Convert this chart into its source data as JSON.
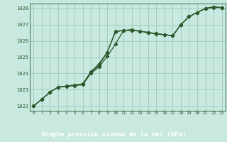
{
  "title": "Graphe pression niveau de la mer (hPa)",
  "bg_color": "#c8e8e0",
  "label_bg_color": "#2d6e3a",
  "grid_color": "#a0c8b8",
  "line_color": "#2d5a2d",
  "text_color": "#2d5a2d",
  "label_text_color": "#ffffff",
  "xlim": [
    -0.5,
    23.5
  ],
  "ylim": [
    1021.7,
    1028.3
  ],
  "yticks": [
    1022,
    1023,
    1024,
    1025,
    1026,
    1027,
    1028
  ],
  "xticks": [
    0,
    1,
    2,
    3,
    4,
    5,
    6,
    7,
    8,
    9,
    10,
    11,
    12,
    13,
    14,
    15,
    16,
    17,
    18,
    19,
    20,
    21,
    22,
    23
  ],
  "series1_x": [
    0,
    1,
    2,
    3,
    4,
    5,
    6,
    7,
    8,
    9,
    10,
    11,
    12,
    13,
    14,
    15,
    16,
    17,
    18,
    19,
    20,
    21,
    22,
    23
  ],
  "series1_y": [
    1022.0,
    1022.4,
    1022.85,
    1023.15,
    1023.2,
    1023.25,
    1023.3,
    1024.0,
    1024.4,
    1025.05,
    1025.8,
    1026.65,
    1026.7,
    1026.6,
    1026.5,
    1026.42,
    1026.38,
    1026.32,
    1027.0,
    1027.5,
    1027.75,
    1028.0,
    1028.05,
    1028.05
  ],
  "series2_x": [
    0,
    1,
    2,
    3,
    4,
    5,
    6,
    7,
    8,
    9,
    10,
    11,
    12,
    13,
    14,
    15,
    16,
    17,
    18,
    19,
    20,
    21,
    22,
    23
  ],
  "series2_y": [
    1022.0,
    1022.4,
    1022.85,
    1023.15,
    1023.22,
    1023.28,
    1023.35,
    1024.05,
    1024.5,
    1025.3,
    1026.6,
    1026.65,
    1026.65,
    1026.6,
    1026.52,
    1026.45,
    1026.38,
    1026.32,
    1027.0,
    1027.5,
    1027.75,
    1028.0,
    1028.1,
    1028.05
  ],
  "series3_x": [
    0,
    1,
    2,
    3,
    4,
    5,
    6,
    7,
    8,
    9,
    10,
    11,
    12,
    13,
    14,
    15,
    16,
    17,
    18,
    19,
    20,
    21,
    22,
    23
  ],
  "series3_y": [
    1022.0,
    1022.4,
    1022.85,
    1023.15,
    1023.22,
    1023.28,
    1023.35,
    1024.1,
    1024.6,
    1025.3,
    1026.55,
    1026.65,
    1026.65,
    1026.6,
    1026.52,
    1026.45,
    1026.38,
    1026.32,
    1027.0,
    1027.5,
    1027.75,
    1028.0,
    1028.1,
    1028.05
  ]
}
